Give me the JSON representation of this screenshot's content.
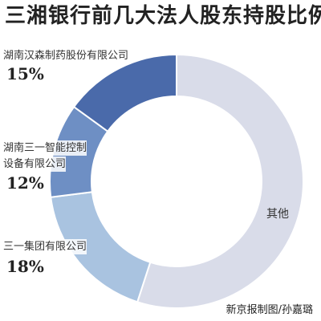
{
  "chart_data": {
    "type": "pie",
    "title": "三湘银行前几大法人股东持股比例",
    "slices": [
      {
        "label": "其他",
        "value": 55,
        "color": "#d9dce9"
      },
      {
        "label": "三一集团有限公司",
        "value": 18,
        "value_label": "18%",
        "color": "#a9c3e0"
      },
      {
        "label": "湖南三一智能控制设备有限公司",
        "value": 12,
        "value_label": "12%",
        "color": "#6e8fc4"
      },
      {
        "label": "湖南汉森制药股份有限公司",
        "value": 15,
        "value_label": "15%",
        "color": "#4a6aaa"
      }
    ]
  },
  "labels": {
    "hansen": {
      "line1": "湖南汉森制药股份有限公司",
      "pct": "15%"
    },
    "sany_zhineng": {
      "line1": "湖南三一智能控制",
      "line2": "设备有限公司",
      "pct": "12%"
    },
    "sany_group": {
      "line1": "三一集团有限公司",
      "pct": "18%"
    },
    "other": "其他"
  },
  "credit": "新京报制图/孙嘉璐"
}
